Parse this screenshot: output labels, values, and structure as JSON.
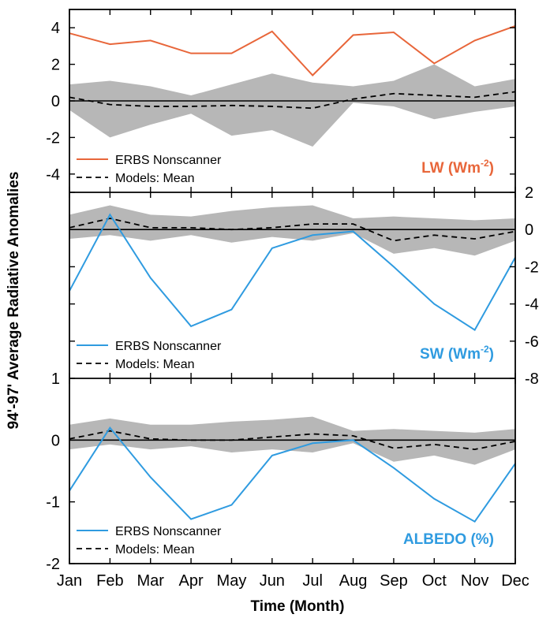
{
  "chart_data": {
    "type": "line",
    "xlabel": "Time (Month)",
    "ylabel": "94'-97' Average Radiative Anomalies",
    "categories": [
      "Jan",
      "Feb",
      "Mar",
      "Apr",
      "May",
      "Jun",
      "Jul",
      "Aug",
      "Sep",
      "Oct",
      "Nov",
      "Dec"
    ],
    "colors": {
      "lw": "#e8663a",
      "sw": "#2f9be0",
      "albedo": "#2f9be0",
      "band": "#b7b7b7",
      "mean": "#000000"
    },
    "panels": [
      {
        "id": "lw",
        "label_main": "LW (Wm",
        "label_sup": "-2",
        "label_end": ")",
        "ylim": [
          -5,
          5
        ],
        "yticks": [
          "4",
          "2",
          "0",
          "-2",
          "-4"
        ],
        "ytick_side": "left",
        "series": [
          {
            "name": "ERBS Nonscanner",
            "values": [
              3.7,
              3.1,
              3.3,
              2.6,
              2.6,
              3.8,
              1.4,
              3.6,
              3.75,
              2.05,
              3.3,
              4.1
            ]
          },
          {
            "name": "Models: Mean",
            "values": [
              0.2,
              -0.2,
              -0.3,
              -0.3,
              -0.25,
              -0.3,
              -0.4,
              0.1,
              0.4,
              0.3,
              0.2,
              0.5
            ]
          }
        ],
        "band_upper": [
          0.9,
          1.1,
          0.8,
          0.3,
          0.9,
          1.5,
          1.0,
          0.8,
          1.1,
          2.0,
          0.8,
          1.2
        ],
        "band_lower": [
          -0.5,
          -2.0,
          -1.3,
          -0.7,
          -1.9,
          -1.6,
          -2.5,
          -0.1,
          -0.3,
          -1.0,
          -0.6,
          -0.3
        ]
      },
      {
        "id": "sw",
        "label_main": "SW (Wm",
        "label_sup": "-2",
        "label_end": ")",
        "ylim": [
          -8,
          2
        ],
        "yticks": [
          "2",
          "0",
          "-2",
          "-4",
          "-6",
          "-8"
        ],
        "ytick_side": "right",
        "series": [
          {
            "name": "ERBS Nonscanner",
            "values": [
              -3.3,
              0.8,
              -2.6,
              -5.2,
              -4.3,
              -1.0,
              -0.3,
              -0.1,
              -2.0,
              -4.0,
              -5.4,
              -1.5
            ]
          },
          {
            "name": "Models: Mean",
            "values": [
              0.1,
              0.6,
              0.1,
              0.1,
              0.0,
              0.1,
              0.3,
              0.3,
              -0.6,
              -0.3,
              -0.5,
              -0.1
            ]
          }
        ],
        "band_upper": [
          0.8,
          1.3,
          0.8,
          0.7,
          1.0,
          1.2,
          1.3,
          0.6,
          0.7,
          0.6,
          0.5,
          0.6
        ],
        "band_lower": [
          -0.5,
          -0.3,
          -0.6,
          -0.3,
          -0.7,
          -0.4,
          -0.6,
          -0.2,
          -1.3,
          -1.0,
          -1.4,
          -0.6
        ]
      },
      {
        "id": "albedo",
        "label_main": "ALBEDO (%)",
        "label_sup": "",
        "label_end": "",
        "ylim": [
          -2,
          1
        ],
        "yticks": [
          "1",
          "0",
          "-1",
          "-2"
        ],
        "ytick_side": "left",
        "series": [
          {
            "name": "ERBS Nonscanner",
            "values": [
              -0.82,
              0.2,
              -0.6,
              -1.28,
              -1.05,
              -0.25,
              -0.05,
              0.0,
              -0.45,
              -0.95,
              -1.32,
              -0.38
            ]
          },
          {
            "name": "Models: Mean",
            "values": [
              0.02,
              0.15,
              0.02,
              0.0,
              0.0,
              0.05,
              0.1,
              0.07,
              -0.13,
              -0.07,
              -0.15,
              -0.02
            ]
          }
        ],
        "band_upper": [
          0.25,
          0.35,
          0.25,
          0.25,
          0.3,
          0.33,
          0.38,
          0.15,
          0.18,
          0.15,
          0.12,
          0.18
        ],
        "band_lower": [
          -0.15,
          -0.07,
          -0.15,
          -0.1,
          -0.2,
          -0.15,
          -0.2,
          -0.05,
          -0.35,
          -0.25,
          -0.4,
          -0.15
        ]
      }
    ]
  }
}
